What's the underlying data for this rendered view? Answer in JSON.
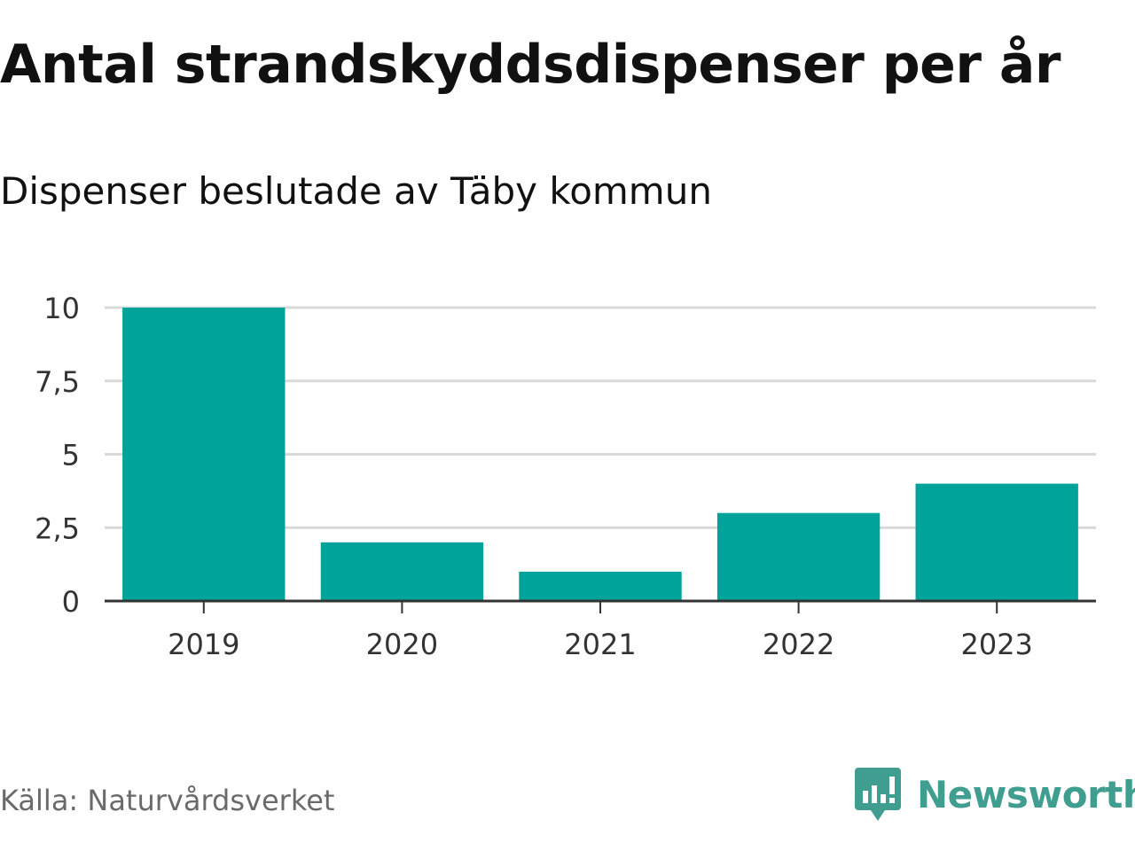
{
  "chart_data": {
    "type": "bar",
    "title": "Antal strandskyddsdispenser per år",
    "subtitle": "Dispenser beslutade av Täby kommun",
    "categories": [
      "2019",
      "2020",
      "2021",
      "2022",
      "2023"
    ],
    "values": [
      10,
      2,
      1,
      3,
      4
    ],
    "yticks": [
      0,
      2.5,
      5,
      7.5,
      10
    ],
    "ytick_labels": [
      "0",
      "2,5",
      "5",
      "7,5",
      "10"
    ],
    "ylim": [
      0,
      10
    ],
    "xlabel": "",
    "ylabel": "",
    "grid": true,
    "bar_color": "#00a39a"
  },
  "footer": {
    "source": "Källa: Naturvårdsverket",
    "brand": "Newsworthy",
    "brand_color": "#3f9e8f"
  }
}
